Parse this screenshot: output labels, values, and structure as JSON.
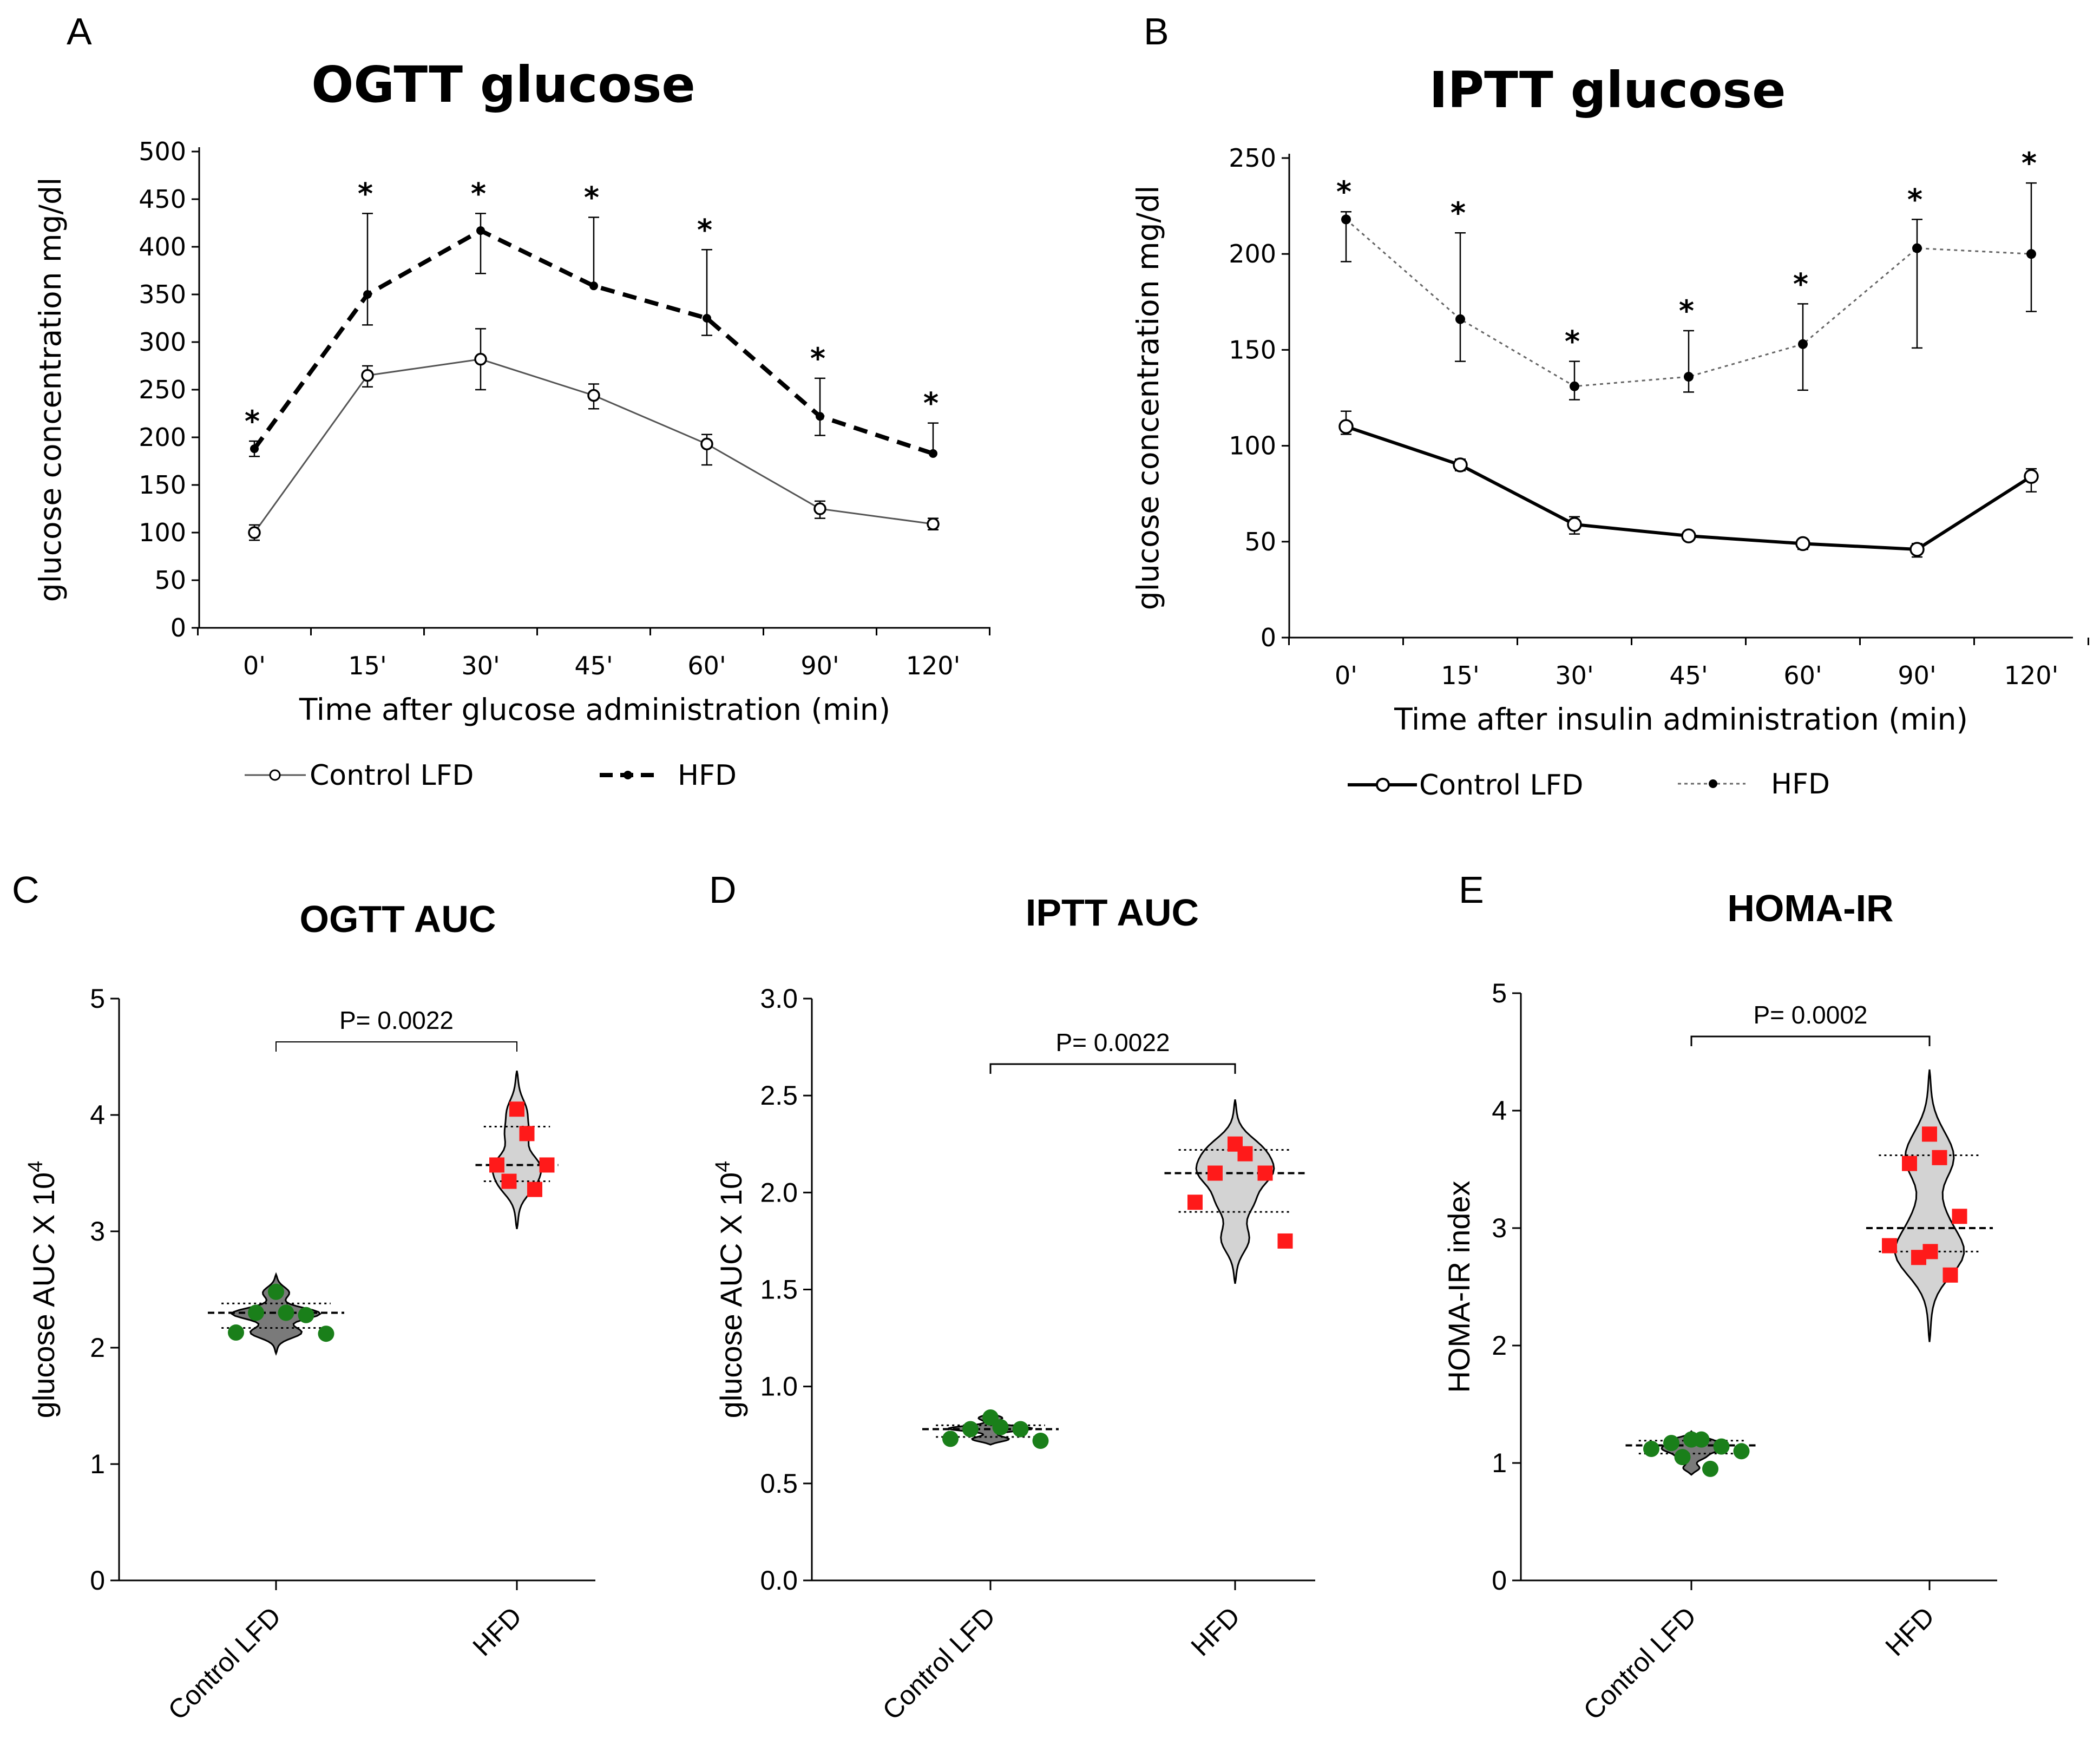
{
  "chart_data": [
    {
      "panel": "A",
      "type": "line",
      "title": "OGTT glucose",
      "xlabel": "Time after glucose administration (min)",
      "ylabel": "glucose concentration mg/dl",
      "categories": [
        "0'",
        "15'",
        "30'",
        "45'",
        "60'",
        "90'",
        "120'"
      ],
      "ylim": [
        0,
        500
      ],
      "yticks": [
        0,
        50,
        100,
        150,
        200,
        250,
        300,
        350,
        400,
        450,
        500
      ],
      "series": [
        {
          "name": "Control LFD",
          "style": "solid-open",
          "values": [
            100,
            265,
            282,
            244,
            193,
            125,
            109
          ],
          "err_low": [
            8,
            12,
            32,
            14,
            22,
            10,
            6
          ],
          "err_high": [
            8,
            10,
            32,
            12,
            10,
            8,
            6
          ],
          "sig": [
            false,
            false,
            false,
            false,
            false,
            false,
            false
          ]
        },
        {
          "name": "HFD",
          "style": "dashed-filled",
          "values": [
            188,
            350,
            417,
            359,
            325,
            222,
            183
          ],
          "err_low": [
            8,
            32,
            45,
            0,
            18,
            20,
            0
          ],
          "err_high": [
            8,
            85,
            18,
            72,
            72,
            40,
            32
          ],
          "sig": [
            true,
            true,
            true,
            true,
            true,
            true,
            true
          ]
        }
      ],
      "sig_label": "*"
    },
    {
      "panel": "B",
      "type": "line",
      "title": "IPTT glucose",
      "xlabel": "Time after insulin administration (min)",
      "ylabel": "glucose concentration mg/dl",
      "categories": [
        "0'",
        "15'",
        "30'",
        "45'",
        "60'",
        "90'",
        "120'"
      ],
      "ylim": [
        0,
        250
      ],
      "yticks": [
        0,
        50,
        100,
        150,
        200,
        250
      ],
      "series": [
        {
          "name": "Control LFD",
          "style": "solid-open",
          "values": [
            110,
            90,
            59,
            53,
            49,
            46,
            84
          ],
          "err_low": [
            4,
            3,
            5,
            2,
            3,
            4,
            8
          ],
          "err_high": [
            8,
            3,
            4,
            2,
            2,
            3,
            4
          ],
          "sig": [
            false,
            false,
            false,
            false,
            false,
            false,
            false
          ]
        },
        {
          "name": "HFD",
          "style": "dotted-filled",
          "values": [
            218,
            166,
            131,
            136,
            153,
            203,
            200
          ],
          "err_low": [
            22,
            22,
            7,
            8,
            24,
            52,
            30
          ],
          "err_high": [
            4,
            45,
            13,
            24,
            21,
            15,
            37
          ],
          "sig": [
            true,
            true,
            true,
            true,
            true,
            true,
            true
          ]
        }
      ],
      "sig_label": "*"
    },
    {
      "panel": "C",
      "type": "scatter",
      "title": "OGTT AUC",
      "ylabel": "glucose AUC X 10",
      "ylabel_exp": "4",
      "categories": [
        "Control LFD",
        "HFD"
      ],
      "ylim": [
        0,
        5
      ],
      "yticks": [
        "0",
        "1",
        "2",
        "3",
        "4",
        "5"
      ],
      "groups": [
        {
          "name": "Control LFD",
          "values": [
            2.48,
            2.3,
            2.3,
            2.28,
            2.13,
            2.12
          ],
          "median": 2.3,
          "q1": 2.17,
          "q3": 2.38,
          "min": 1.95,
          "max": 2.63
        },
        {
          "name": "HFD",
          "values": [
            4.05,
            3.84,
            3.57,
            3.57,
            3.43,
            3.36
          ],
          "median": 3.57,
          "q1": 3.43,
          "q3": 3.9,
          "min": 3.02,
          "max": 4.38
        }
      ],
      "pvalue": "P= 0.0022"
    },
    {
      "panel": "D",
      "type": "scatter",
      "title": "IPTT AUC",
      "ylabel": "glucose AUC X 10",
      "ylabel_exp": "4",
      "categories": [
        "Control LFD",
        "HFD"
      ],
      "ylim": [
        0,
        3
      ],
      "yticks": [
        "0.0",
        "0.5",
        "1.0",
        "1.5",
        "2.0",
        "2.5",
        "3.0"
      ],
      "groups": [
        {
          "name": "Control LFD",
          "values": [
            0.84,
            0.79,
            0.78,
            0.78,
            0.73,
            0.72
          ],
          "median": 0.78,
          "q1": 0.74,
          "q3": 0.8,
          "min": 0.7,
          "max": 0.87
        },
        {
          "name": "HFD",
          "values": [
            2.25,
            2.2,
            2.1,
            2.1,
            1.95,
            1.75
          ],
          "median": 2.1,
          "q1": 1.9,
          "q3": 2.22,
          "min": 1.53,
          "max": 2.48
        }
      ],
      "pvalue": "P= 0.0022"
    },
    {
      "panel": "E",
      "type": "scatter",
      "title": "HOMA-IR",
      "ylabel": "HOMA-IR index",
      "categories": [
        "Control LFD",
        "HFD"
      ],
      "ylim": [
        0,
        5
      ],
      "yticks": [
        "0",
        "1",
        "2",
        "3",
        "4",
        "5"
      ],
      "groups": [
        {
          "name": "Control LFD",
          "values": [
            1.2,
            1.2,
            1.17,
            1.14,
            1.12,
            1.1,
            1.05,
            0.95
          ],
          "median": 1.15,
          "q1": 1.08,
          "q3": 1.19,
          "min": 0.9,
          "max": 1.27
        },
        {
          "name": "HFD",
          "values": [
            3.8,
            3.6,
            3.55,
            3.1,
            2.85,
            2.8,
            2.75,
            2.6
          ],
          "median": 3.0,
          "q1": 2.8,
          "q3": 3.62,
          "min": 2.03,
          "max": 4.35
        }
      ],
      "pvalue": "P= 0.0002"
    }
  ],
  "panels": {
    "a": "A",
    "b": "B",
    "c": "C",
    "d": "D",
    "e": "E"
  }
}
